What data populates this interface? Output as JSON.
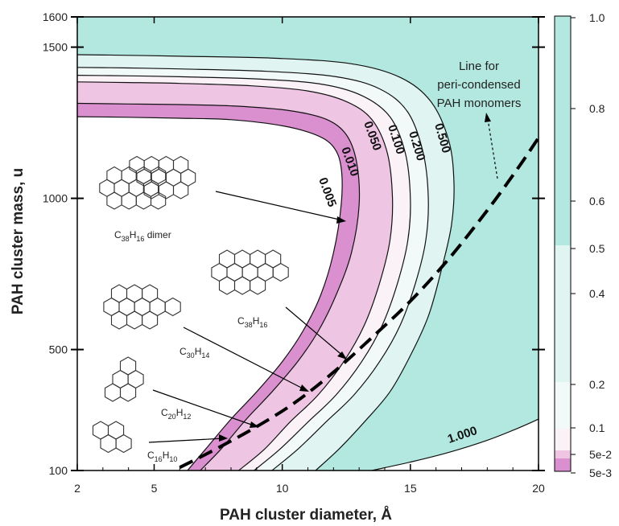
{
  "chart_data": {
    "type": "area",
    "xlabel": "PAH cluster diameter, Å",
    "ylabel": "PAH cluster mass, u",
    "xlim": [
      2,
      20
    ],
    "ylim": [
      100,
      1600
    ],
    "xticks": [
      "2",
      "5",
      "10",
      "15",
      "20"
    ],
    "yticks": [
      "100",
      "500",
      "1000",
      "1500",
      "1600"
    ],
    "series": [
      {
        "name": "0.005",
        "x": [
          6.3,
          7.0,
          8.0,
          9.0,
          10.0,
          10.8,
          11.5,
          12.0,
          12.3,
          12.3,
          12.0,
          11.3,
          10.0,
          8.0,
          6.0,
          4.0,
          2.0
        ],
        "y": [
          100,
          170,
          270,
          360,
          460,
          560,
          680,
          820,
          980,
          1100,
          1170,
          1210,
          1240,
          1260,
          1265,
          1268,
          1270
        ]
      },
      {
        "name": "0.010",
        "x": [
          6.8,
          7.6,
          8.6,
          9.6,
          10.6,
          11.4,
          12.1,
          12.7,
          13.0,
          12.9,
          12.5,
          11.7,
          10.3,
          8.2,
          6.0,
          4.0,
          2.0
        ],
        "y": [
          100,
          170,
          270,
          360,
          460,
          560,
          680,
          820,
          980,
          1120,
          1210,
          1262,
          1290,
          1305,
          1310,
          1312,
          1314
        ]
      },
      {
        "name": "0.050",
        "x": [
          8.3,
          9.3,
          10.3,
          11.4,
          12.4,
          13.2,
          13.8,
          14.2,
          14.3,
          14.1,
          13.5,
          12.5,
          11.0,
          8.8,
          6.0,
          4.0,
          2.0
        ],
        "y": [
          100,
          170,
          260,
          350,
          460,
          580,
          720,
          860,
          1000,
          1150,
          1260,
          1320,
          1355,
          1372,
          1380,
          1383,
          1385
        ]
      },
      {
        "name": "0.100",
        "x": [
          8.9,
          9.9,
          11.0,
          12.1,
          13.1,
          13.9,
          14.5,
          14.9,
          15.0,
          14.8,
          14.2,
          13.1,
          11.5,
          9.0,
          6.0,
          4.0,
          2.0
        ],
        "y": [
          100,
          170,
          260,
          350,
          460,
          580,
          720,
          860,
          1000,
          1150,
          1270,
          1340,
          1378,
          1395,
          1402,
          1405,
          1407
        ]
      },
      {
        "name": "0.200",
        "x": [
          9.6,
          10.6,
          11.7,
          12.8,
          13.8,
          14.6,
          15.2,
          15.6,
          15.7,
          15.5,
          14.9,
          13.8,
          12.1,
          9.4,
          6.0,
          4.0,
          2.0
        ],
        "y": [
          100,
          170,
          260,
          350,
          460,
          580,
          720,
          860,
          1000,
          1150,
          1285,
          1362,
          1402,
          1420,
          1428,
          1431,
          1433
        ]
      },
      {
        "name": "0.500",
        "x": [
          11.3,
          12.2,
          13.2,
          14.2,
          15.0,
          15.7,
          16.2,
          16.6,
          16.7,
          16.5,
          15.8,
          14.6,
          12.7,
          9.8,
          6.0,
          4.0,
          2.0
        ],
        "y": [
          100,
          170,
          260,
          360,
          480,
          610,
          760,
          910,
          1050,
          1190,
          1320,
          1400,
          1445,
          1463,
          1470,
          1473,
          1475
        ]
      },
      {
        "name": "1.000",
        "x": [
          13.5,
          15.0,
          16.5,
          18.0,
          19.2,
          20.0
        ],
        "y": [
          100,
          128,
          160,
          200,
          240,
          270
        ]
      }
    ],
    "dashed_line": {
      "name": "Line for peri-condensed PAH monomers",
      "x": [
        6.0,
        7.5,
        9.0,
        10.5,
        12.0,
        13.5,
        15.0,
        16.5,
        18.0,
        19.2,
        20.0
      ],
      "y": [
        110,
        175,
        245,
        325,
        425,
        540,
        660,
        800,
        960,
        1100,
        1200
      ]
    },
    "colorbar": {
      "ticks": [
        "1.0",
        "0.8",
        "0.6",
        "0.5",
        "0.4",
        "0.2",
        "0.1",
        "5e-2",
        "5e-3"
      ],
      "colors": {
        "high": "#b3e8e1",
        "band_05": "#e0f4f1",
        "band_02": "#f1faf9",
        "band_01": "#fbf2f8",
        "band_005": "#efc5e4",
        "band_0005": "#da8fcf"
      }
    },
    "annotations": {
      "line_label": [
        "Line for",
        "peri-condensed",
        "PAH monomers"
      ],
      "molecules": [
        {
          "base": "C",
          "n1": "38",
          "h": "H",
          "n2": "16",
          "suffix": " dimer"
        },
        {
          "base": "C",
          "n1": "38",
          "h": "H",
          "n2": "16",
          "suffix": ""
        },
        {
          "base": "C",
          "n1": "30",
          "h": "H",
          "n2": "14",
          "suffix": ""
        },
        {
          "base": "C",
          "n1": "20",
          "h": "H",
          "n2": "12",
          "suffix": ""
        },
        {
          "base": "C",
          "n1": "16",
          "h": "H",
          "n2": "10",
          "suffix": ""
        }
      ]
    }
  }
}
